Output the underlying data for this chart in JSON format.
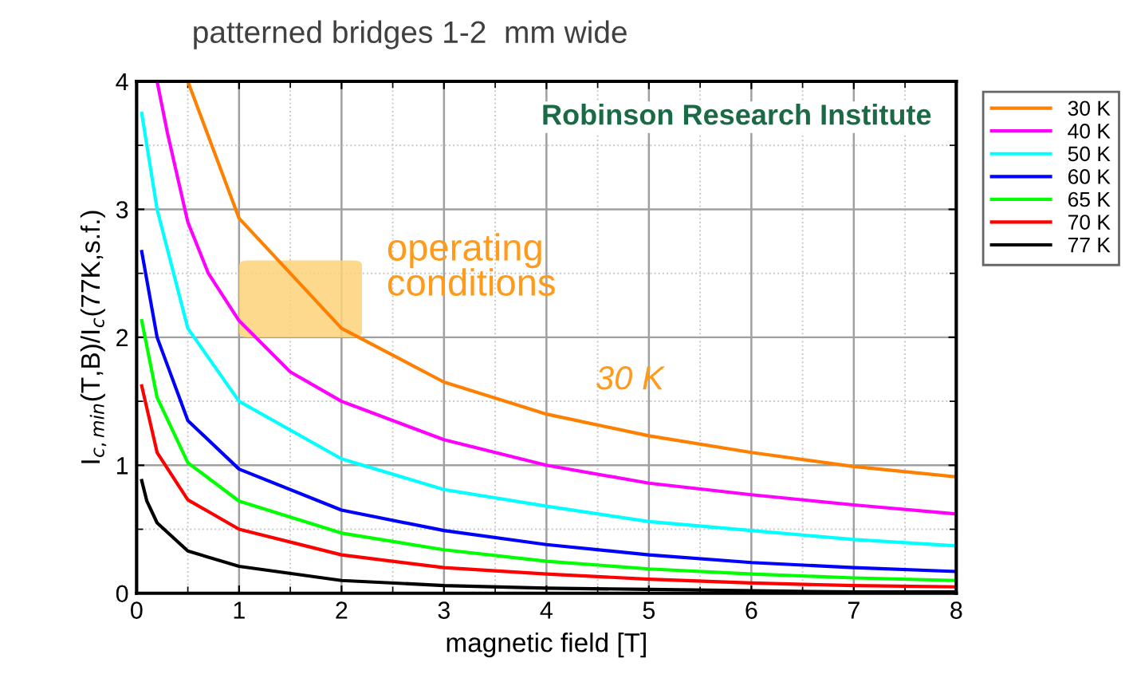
{
  "chart_data": {
    "type": "line",
    "title": "patterned bridges 1-2  mm wide",
    "xlabel": "magnetic field [T]",
    "ylabel": "I$_{c,min}$(T,B)/I$_{c}$(77K,s.f.)",
    "xlim": [
      0,
      8
    ],
    "ylim": [
      0,
      4
    ],
    "xticks": [
      0,
      1,
      2,
      3,
      4,
      5,
      6,
      7,
      8
    ],
    "yticks": [
      0,
      1,
      2,
      3,
      4
    ],
    "grid": true,
    "legend": "top right",
    "marker": "none",
    "line_style": "solid",
    "series": [
      {
        "name": "30 K",
        "color": "#ff8000",
        "x": [
          0.5,
          1,
          1.5,
          2,
          3,
          4,
          5,
          6,
          7,
          8
        ],
        "values": [
          4.0,
          2.93,
          2.5,
          2.07,
          1.65,
          1.4,
          1.23,
          1.1,
          0.99,
          0.91
        ]
      },
      {
        "name": "40 K",
        "color": "#ff00ff",
        "x": [
          0.2,
          0.3,
          0.5,
          0.7,
          1,
          1.5,
          2,
          3,
          4,
          5,
          6,
          7,
          8
        ],
        "values": [
          4.0,
          3.6,
          2.9,
          2.5,
          2.13,
          1.73,
          1.5,
          1.2,
          1.0,
          0.86,
          0.77,
          0.69,
          0.62
        ]
      },
      {
        "name": "50 K",
        "color": "#00ffff",
        "x": [
          0.05,
          0.2,
          0.5,
          1,
          2,
          3,
          4,
          5,
          6,
          7,
          8
        ],
        "values": [
          3.75,
          3.0,
          2.07,
          1.5,
          1.05,
          0.81,
          0.68,
          0.56,
          0.49,
          0.42,
          0.37
        ]
      },
      {
        "name": "60 K",
        "color": "#0000ff",
        "x": [
          0.05,
          0.2,
          0.5,
          1,
          2,
          3,
          4,
          5,
          6,
          7,
          8
        ],
        "values": [
          2.67,
          2.0,
          1.35,
          0.97,
          0.65,
          0.49,
          0.38,
          0.3,
          0.24,
          0.2,
          0.17
        ]
      },
      {
        "name": "65 K",
        "color": "#00ff00",
        "x": [
          0.05,
          0.2,
          0.5,
          1,
          2,
          3,
          4,
          5,
          6,
          7,
          8
        ],
        "values": [
          2.13,
          1.53,
          1.02,
          0.72,
          0.47,
          0.34,
          0.25,
          0.19,
          0.15,
          0.12,
          0.1
        ]
      },
      {
        "name": "70 K",
        "color": "#ff0000",
        "x": [
          0.05,
          0.2,
          0.5,
          1,
          2,
          3,
          4,
          5,
          6,
          7,
          8
        ],
        "values": [
          1.62,
          1.1,
          0.73,
          0.5,
          0.3,
          0.2,
          0.15,
          0.11,
          0.08,
          0.06,
          0.05
        ]
      },
      {
        "name": "77 K",
        "color": "#000000",
        "x": [
          0.05,
          0.1,
          0.2,
          0.5,
          1,
          2,
          3,
          4,
          5,
          6,
          7,
          8
        ],
        "values": [
          0.88,
          0.72,
          0.55,
          0.33,
          0.21,
          0.1,
          0.06,
          0.04,
          0.03,
          0.02,
          0.01,
          0.01
        ]
      }
    ],
    "annotations": [
      "Robinson Research Institute",
      "operating\nconditions",
      "30 K"
    ]
  }
}
